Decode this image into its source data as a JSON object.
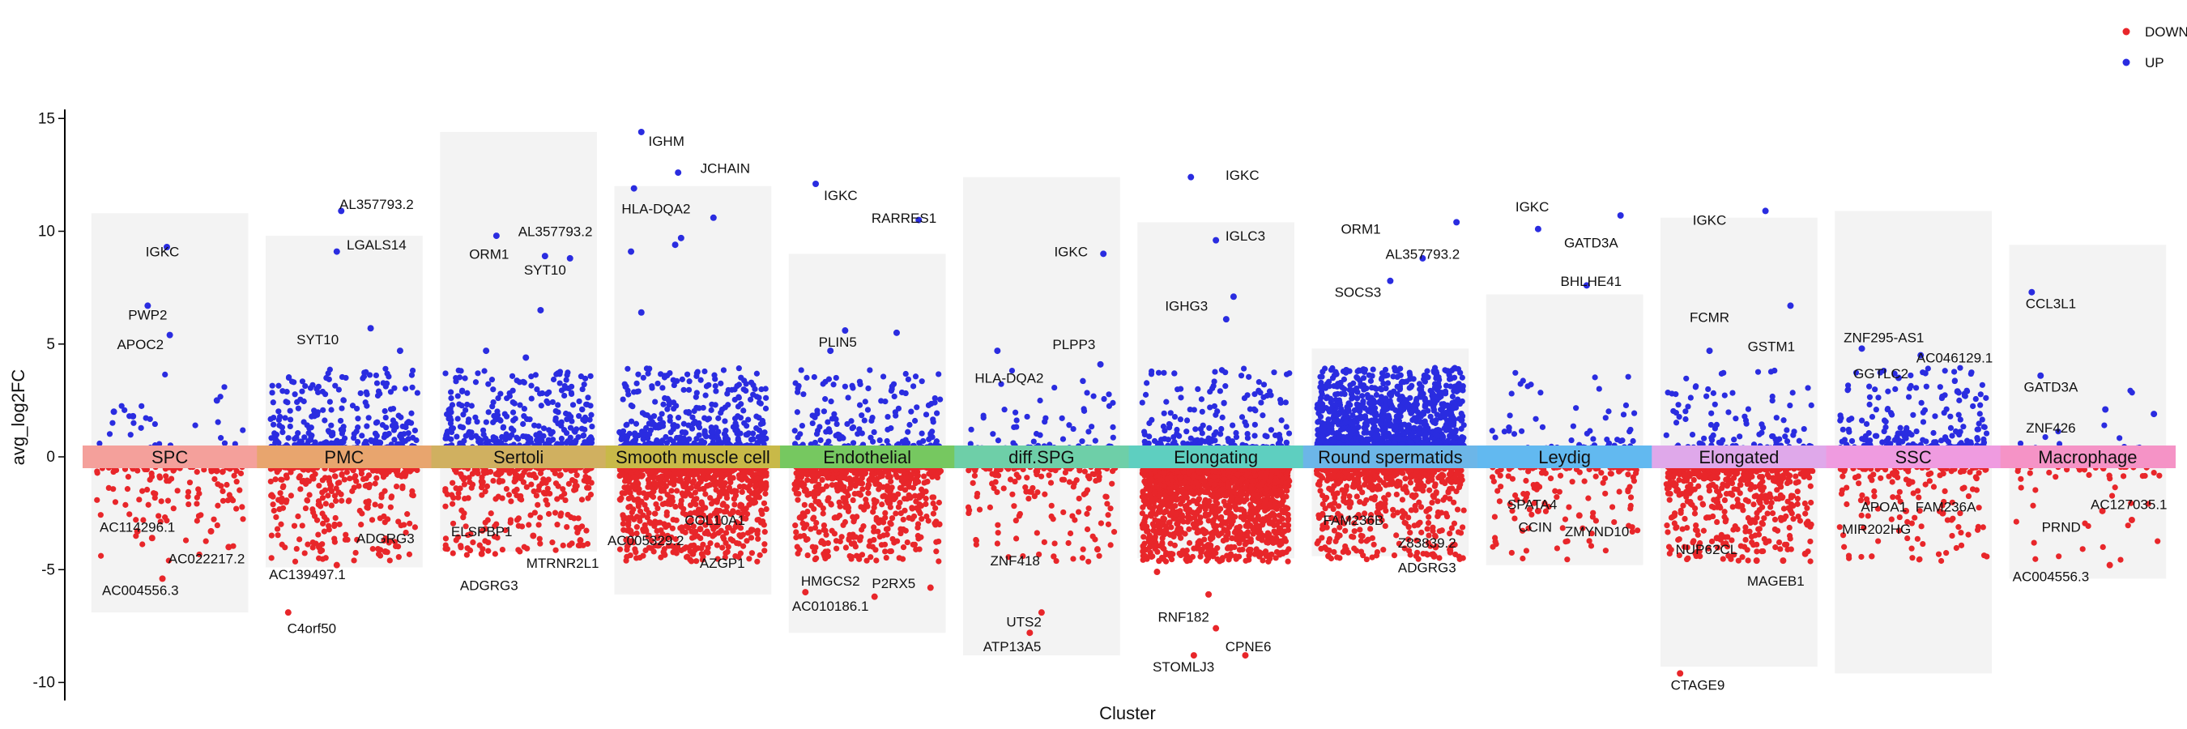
{
  "chart_data": {
    "type": "scatter",
    "xlabel": "Cluster",
    "ylabel": "avg_log2FC",
    "ylim": [
      -10.8,
      15.4
    ],
    "yticks": [
      15,
      10,
      5,
      0,
      -5,
      -10
    ],
    "legend": {
      "placement": "top-right",
      "entries": [
        {
          "name": "DOWN",
          "color": "#e8262a"
        },
        {
          "name": "UP",
          "color": "#2a2ce0"
        }
      ]
    },
    "clusters": [
      {
        "name": "SPC",
        "color": "#f4a09b",
        "ymax": 10.8,
        "ymin": -6.9,
        "n_up": 30,
        "n_down": 120,
        "labels": [
          {
            "gene": "IGKC",
            "x": 0.45,
            "y": 9.1
          },
          {
            "gene": "PWP2",
            "x": 0.35,
            "y": 6.3
          },
          {
            "gene": "APOC2",
            "x": 0.3,
            "y": 5.0
          },
          {
            "gene": "AC114296.1",
            "x": 0.28,
            "y": -3.1
          },
          {
            "gene": "AC022217.2",
            "x": 0.75,
            "y": -4.5
          },
          {
            "gene": "AC004556.3",
            "x": 0.3,
            "y": -5.9
          }
        ],
        "points": [
          {
            "x": 0.35,
            "y": 6.7,
            "dir": "UP"
          },
          {
            "x": 0.48,
            "y": 9.3,
            "dir": "UP"
          },
          {
            "x": 0.5,
            "y": 5.4,
            "dir": "UP"
          },
          {
            "x": 0.12,
            "y": 2.0,
            "dir": "UP"
          },
          {
            "x": 0.25,
            "y": 1.8,
            "dir": "UP"
          },
          {
            "x": 0.82,
            "y": 2.5,
            "dir": "UP"
          },
          {
            "x": 0.28,
            "y": -3.3,
            "dir": "DOWN"
          },
          {
            "x": 0.38,
            "y": -3.6,
            "dir": "DOWN"
          },
          {
            "x": 0.9,
            "y": -4.0,
            "dir": "DOWN"
          },
          {
            "x": 0.45,
            "y": -5.4,
            "dir": "DOWN"
          },
          {
            "x": 0.78,
            "y": -3.3,
            "dir": "DOWN"
          }
        ]
      },
      {
        "name": "PMC",
        "color": "#e8a56e",
        "ymax": 9.8,
        "ymin": -4.9,
        "n_up": 320,
        "n_down": 300,
        "labels": [
          {
            "gene": "AL357793.2",
            "x": 0.72,
            "y": 11.2
          },
          {
            "gene": "LGALS14",
            "x": 0.72,
            "y": 9.4
          },
          {
            "gene": "SYT10",
            "x": 0.32,
            "y": 5.2
          },
          {
            "gene": "ADGRG3",
            "x": 0.78,
            "y": -3.6
          },
          {
            "gene": "AC139497.1",
            "x": 0.25,
            "y": -5.2
          },
          {
            "gene": "C4orf50",
            "x": 0.28,
            "y": -7.6
          }
        ],
        "points": [
          {
            "x": 0.48,
            "y": 10.9,
            "dir": "UP"
          },
          {
            "x": 0.45,
            "y": 9.1,
            "dir": "UP"
          },
          {
            "x": 0.68,
            "y": 5.7,
            "dir": "UP"
          },
          {
            "x": 0.88,
            "y": 4.7,
            "dir": "UP"
          },
          {
            "x": 0.12,
            "y": -6.9,
            "dir": "DOWN"
          },
          {
            "x": 0.45,
            "y": -4.8,
            "dir": "DOWN"
          },
          {
            "x": 0.33,
            "y": -4.0,
            "dir": "DOWN"
          },
          {
            "x": 0.78,
            "y": -4.2,
            "dir": "DOWN"
          }
        ]
      },
      {
        "name": "Sertoli",
        "color": "#d0b060",
        "ymax": 14.4,
        "ymin": -4.2,
        "n_up": 420,
        "n_down": 280,
        "labels": [
          {
            "gene": "ORM1",
            "x": 0.3,
            "y": 9.0
          },
          {
            "gene": "AL357793.2",
            "x": 0.75,
            "y": 10.0
          },
          {
            "gene": "SYT10",
            "x": 0.68,
            "y": 8.3
          },
          {
            "gene": "ELSPBP1",
            "x": 0.25,
            "y": -3.3
          },
          {
            "gene": "MTRNR2L1",
            "x": 0.8,
            "y": -4.7
          },
          {
            "gene": "ADGRG3",
            "x": 0.3,
            "y": -5.7
          }
        ],
        "points": [
          {
            "x": 0.35,
            "y": 9.8,
            "dir": "UP"
          },
          {
            "x": 0.68,
            "y": 8.9,
            "dir": "UP"
          },
          {
            "x": 0.85,
            "y": 8.8,
            "dir": "UP"
          },
          {
            "x": 0.65,
            "y": 6.5,
            "dir": "UP"
          },
          {
            "x": 0.28,
            "y": 4.7,
            "dir": "UP"
          },
          {
            "x": 0.55,
            "y": 4.4,
            "dir": "UP"
          },
          {
            "x": 0.6,
            "y": -3.5,
            "dir": "DOWN"
          },
          {
            "x": 0.92,
            "y": -3.7,
            "dir": "DOWN"
          },
          {
            "x": 0.25,
            "y": -4.3,
            "dir": "DOWN"
          }
        ]
      },
      {
        "name": "Smooth muscle cell",
        "color": "#c8b948",
        "ymax": 12.0,
        "ymin": -6.1,
        "n_up": 520,
        "n_down": 900,
        "labels": [
          {
            "gene": "IGHM",
            "x": 0.32,
            "y": 14.0
          },
          {
            "gene": "JCHAIN",
            "x": 0.72,
            "y": 12.8
          },
          {
            "gene": "HLA-DQA2",
            "x": 0.25,
            "y": 11.0
          },
          {
            "gene": "COL10A1",
            "x": 0.65,
            "y": -2.8
          },
          {
            "gene": "AC005329.2",
            "x": 0.18,
            "y": -3.7
          },
          {
            "gene": "AZGP1",
            "x": 0.7,
            "y": -4.7
          }
        ],
        "points": [
          {
            "x": 0.15,
            "y": 14.4,
            "dir": "UP"
          },
          {
            "x": 0.4,
            "y": 12.6,
            "dir": "UP"
          },
          {
            "x": 0.1,
            "y": 11.9,
            "dir": "UP"
          },
          {
            "x": 0.64,
            "y": 10.6,
            "dir": "UP"
          },
          {
            "x": 0.42,
            "y": 9.7,
            "dir": "UP"
          },
          {
            "x": 0.38,
            "y": 9.4,
            "dir": "UP"
          },
          {
            "x": 0.08,
            "y": 9.1,
            "dir": "UP"
          },
          {
            "x": 0.15,
            "y": 6.4,
            "dir": "UP"
          },
          {
            "x": 0.55,
            "y": -3.2,
            "dir": "DOWN"
          },
          {
            "x": 0.5,
            "y": -4.3,
            "dir": "DOWN"
          },
          {
            "x": 0.2,
            "y": -3.5,
            "dir": "DOWN"
          }
        ]
      },
      {
        "name": "Endothelial",
        "color": "#76c860",
        "ymax": 9.0,
        "ymin": -7.8,
        "n_up": 220,
        "n_down": 650,
        "labels": [
          {
            "gene": "IGKC",
            "x": 0.32,
            "y": 11.6
          },
          {
            "gene": "RARRES1",
            "x": 0.75,
            "y": 10.6
          },
          {
            "gene": "PLIN5",
            "x": 0.3,
            "y": 5.1
          },
          {
            "gene": "HMGCS2",
            "x": 0.25,
            "y": -5.5
          },
          {
            "gene": "P2RX5",
            "x": 0.68,
            "y": -5.6
          },
          {
            "gene": "AC010186.1",
            "x": 0.25,
            "y": -6.6
          }
        ],
        "points": [
          {
            "x": 0.15,
            "y": 12.1,
            "dir": "UP"
          },
          {
            "x": 0.85,
            "y": 10.5,
            "dir": "UP"
          },
          {
            "x": 0.35,
            "y": 5.6,
            "dir": "UP"
          },
          {
            "x": 0.7,
            "y": 5.5,
            "dir": "UP"
          },
          {
            "x": 0.25,
            "y": 4.7,
            "dir": "UP"
          },
          {
            "x": 0.08,
            "y": -6.0,
            "dir": "DOWN"
          },
          {
            "x": 0.55,
            "y": -6.2,
            "dir": "DOWN"
          },
          {
            "x": 0.93,
            "y": -5.8,
            "dir": "DOWN"
          }
        ]
      },
      {
        "name": "diff.SPG",
        "color": "#6ecfa8",
        "ymax": 12.4,
        "ymin": -8.8,
        "n_up": 80,
        "n_down": 160,
        "labels": [
          {
            "gene": "IGKC",
            "x": 0.7,
            "y": 9.1
          },
          {
            "gene": "PLPP3",
            "x": 0.72,
            "y": 5.0
          },
          {
            "gene": "HLA-DQA2",
            "x": 0.28,
            "y": 3.5
          },
          {
            "gene": "ZNF418",
            "x": 0.32,
            "y": -4.6
          },
          {
            "gene": "UTS2",
            "x": 0.38,
            "y": -7.3
          },
          {
            "gene": "ATP13A5",
            "x": 0.3,
            "y": -8.4
          }
        ],
        "points": [
          {
            "x": 0.92,
            "y": 9.0,
            "dir": "UP"
          },
          {
            "x": 0.2,
            "y": 4.7,
            "dir": "UP"
          },
          {
            "x": 0.9,
            "y": 4.1,
            "dir": "UP"
          },
          {
            "x": 0.42,
            "y": -7.8,
            "dir": "DOWN"
          },
          {
            "x": 0.5,
            "y": -6.9,
            "dir": "DOWN"
          },
          {
            "x": 0.88,
            "y": -4.1,
            "dir": "DOWN"
          }
        ]
      },
      {
        "name": "Elongating",
        "color": "#5ecfc0",
        "ymax": 10.4,
        "ymin": -4.5,
        "n_up": 250,
        "n_down": 1800,
        "labels": [
          {
            "gene": "IGKC",
            "x": 0.68,
            "y": 12.5
          },
          {
            "gene": "IGLC3",
            "x": 0.7,
            "y": 9.8
          },
          {
            "gene": "IGHG3",
            "x": 0.3,
            "y": 6.7
          },
          {
            "gene": "RNF182",
            "x": 0.28,
            "y": -7.1
          },
          {
            "gene": "CPNE6",
            "x": 0.72,
            "y": -8.4
          },
          {
            "gene": "STOMLJ3",
            "x": 0.28,
            "y": -9.3
          }
        ],
        "points": [
          {
            "x": 0.33,
            "y": 12.4,
            "dir": "UP"
          },
          {
            "x": 0.5,
            "y": 9.6,
            "dir": "UP"
          },
          {
            "x": 0.62,
            "y": 7.1,
            "dir": "UP"
          },
          {
            "x": 0.57,
            "y": 6.1,
            "dir": "UP"
          },
          {
            "x": 0.1,
            "y": -5.1,
            "dir": "DOWN"
          },
          {
            "x": 0.45,
            "y": -6.1,
            "dir": "DOWN"
          },
          {
            "x": 0.5,
            "y": -7.6,
            "dir": "DOWN"
          },
          {
            "x": 0.35,
            "y": -8.8,
            "dir": "DOWN"
          },
          {
            "x": 0.7,
            "y": -8.8,
            "dir": "DOWN"
          }
        ]
      },
      {
        "name": "Round spermatids",
        "color": "#6cb6e8",
        "ymax": 4.8,
        "ymin": -4.4,
        "n_up": 1500,
        "n_down": 600,
        "labels": [
          {
            "gene": "ORM1",
            "x": 0.3,
            "y": 10.1
          },
          {
            "gene": "AL357793.2",
            "x": 0.72,
            "y": 9.0
          },
          {
            "gene": "SOCS3",
            "x": 0.28,
            "y": 7.3
          },
          {
            "gene": "FAM236B",
            "x": 0.25,
            "y": -2.8
          },
          {
            "gene": "Z83839.2",
            "x": 0.75,
            "y": -3.8
          },
          {
            "gene": "ADGRG3",
            "x": 0.75,
            "y": -4.9
          }
        ],
        "points": [
          {
            "x": 0.95,
            "y": 10.4,
            "dir": "UP"
          },
          {
            "x": 0.72,
            "y": 8.8,
            "dir": "UP"
          },
          {
            "x": 0.5,
            "y": 7.8,
            "dir": "UP"
          },
          {
            "x": 0.08,
            "y": -4.4,
            "dir": "DOWN"
          },
          {
            "x": 0.8,
            "y": -4.4,
            "dir": "DOWN"
          }
        ]
      },
      {
        "name": "Leydig",
        "color": "#62b9f0",
        "ymax": 7.2,
        "ymin": -4.8,
        "n_up": 70,
        "n_down": 140,
        "labels": [
          {
            "gene": "IGKC",
            "x": 0.28,
            "y": 11.1
          },
          {
            "gene": "GATD3A",
            "x": 0.68,
            "y": 9.5
          },
          {
            "gene": "BHLHE41",
            "x": 0.68,
            "y": 7.8
          },
          {
            "gene": "SPATA4",
            "x": 0.28,
            "y": -2.1
          },
          {
            "gene": "CCIN",
            "x": 0.3,
            "y": -3.1
          },
          {
            "gene": "ZMYND10",
            "x": 0.72,
            "y": -3.3
          }
        ],
        "points": [
          {
            "x": 0.32,
            "y": 10.1,
            "dir": "UP"
          },
          {
            "x": 0.88,
            "y": 10.7,
            "dir": "UP"
          },
          {
            "x": 0.65,
            "y": 7.6,
            "dir": "UP"
          },
          {
            "x": 0.32,
            "y": -2.4,
            "dir": "DOWN"
          },
          {
            "x": 0.6,
            "y": -2.6,
            "dir": "DOWN"
          }
        ]
      },
      {
        "name": "Elongated",
        "color": "#dfa8ea",
        "ymax": 10.6,
        "ymin": -9.3,
        "n_up": 130,
        "n_down": 550,
        "labels": [
          {
            "gene": "IGKC",
            "x": 0.3,
            "y": 10.5
          },
          {
            "gene": "FCMR",
            "x": 0.3,
            "y": 6.2
          },
          {
            "gene": "GSTM1",
            "x": 0.72,
            "y": 4.9
          },
          {
            "gene": "NUP62CL",
            "x": 0.28,
            "y": -4.1
          },
          {
            "gene": "MAGEB1",
            "x": 0.75,
            "y": -5.5
          },
          {
            "gene": "CTAGE9",
            "x": 0.22,
            "y": -10.1
          }
        ],
        "points": [
          {
            "x": 0.68,
            "y": 10.9,
            "dir": "UP"
          },
          {
            "x": 0.85,
            "y": 6.7,
            "dir": "UP"
          },
          {
            "x": 0.3,
            "y": 4.7,
            "dir": "UP"
          },
          {
            "x": 0.1,
            "y": -9.6,
            "dir": "DOWN"
          },
          {
            "x": 0.35,
            "y": -3.6,
            "dir": "DOWN"
          },
          {
            "x": 0.62,
            "y": -4.6,
            "dir": "DOWN"
          },
          {
            "x": 0.8,
            "y": -4.6,
            "dir": "DOWN"
          },
          {
            "x": 0.95,
            "y": -4.3,
            "dir": "DOWN"
          }
        ]
      },
      {
        "name": "SSC",
        "color": "#ef9be0",
        "ymax": 10.9,
        "ymin": -9.6,
        "n_up": 260,
        "n_down": 160,
        "labels": [
          {
            "gene": "ZNF295-AS1",
            "x": 0.3,
            "y": 5.3
          },
          {
            "gene": "AC046129.1",
            "x": 0.78,
            "y": 4.4
          },
          {
            "gene": "GGTLC2",
            "x": 0.28,
            "y": 3.7
          },
          {
            "gene": "APOA1",
            "x": 0.3,
            "y": -2.2
          },
          {
            "gene": "FAM236A",
            "x": 0.72,
            "y": -2.2
          },
          {
            "gene": "MIR202HG",
            "x": 0.25,
            "y": -3.2
          }
        ],
        "points": [
          {
            "x": 0.15,
            "y": 4.8,
            "dir": "UP"
          },
          {
            "x": 0.55,
            "y": 4.5,
            "dir": "UP"
          },
          {
            "x": 0.4,
            "y": 3.5,
            "dir": "UP"
          },
          {
            "x": 0.8,
            "y": 2.9,
            "dir": "UP"
          },
          {
            "x": 0.45,
            "y": -2.4,
            "dir": "DOWN"
          },
          {
            "x": 0.7,
            "y": -2.5,
            "dir": "DOWN"
          }
        ]
      },
      {
        "name": "Macrophage",
        "color": "#f593c6",
        "ymax": 9.4,
        "ymin": -5.4,
        "n_up": 20,
        "n_down": 50,
        "labels": [
          {
            "gene": "CCL3L1",
            "x": 0.25,
            "y": 6.8
          },
          {
            "gene": "GATD3A",
            "x": 0.25,
            "y": 3.1
          },
          {
            "gene": "ZNF426",
            "x": 0.25,
            "y": 1.3
          },
          {
            "gene": "AC127035.1",
            "x": 0.78,
            "y": -2.1
          },
          {
            "gene": "PRND",
            "x": 0.32,
            "y": -3.1
          },
          {
            "gene": "AC004556.3",
            "x": 0.25,
            "y": -5.3
          }
        ],
        "points": [
          {
            "x": 0.12,
            "y": 7.3,
            "dir": "UP"
          },
          {
            "x": 0.18,
            "y": 3.6,
            "dir": "UP"
          },
          {
            "x": 0.62,
            "y": 2.1,
            "dir": "UP"
          },
          {
            "x": 0.95,
            "y": 1.9,
            "dir": "UP"
          },
          {
            "x": 0.8,
            "y": -2.8,
            "dir": "DOWN"
          },
          {
            "x": 0.65,
            "y": -4.8,
            "dir": "DOWN"
          },
          {
            "x": 0.6,
            "y": -2.4,
            "dir": "DOWN"
          }
        ]
      }
    ]
  }
}
